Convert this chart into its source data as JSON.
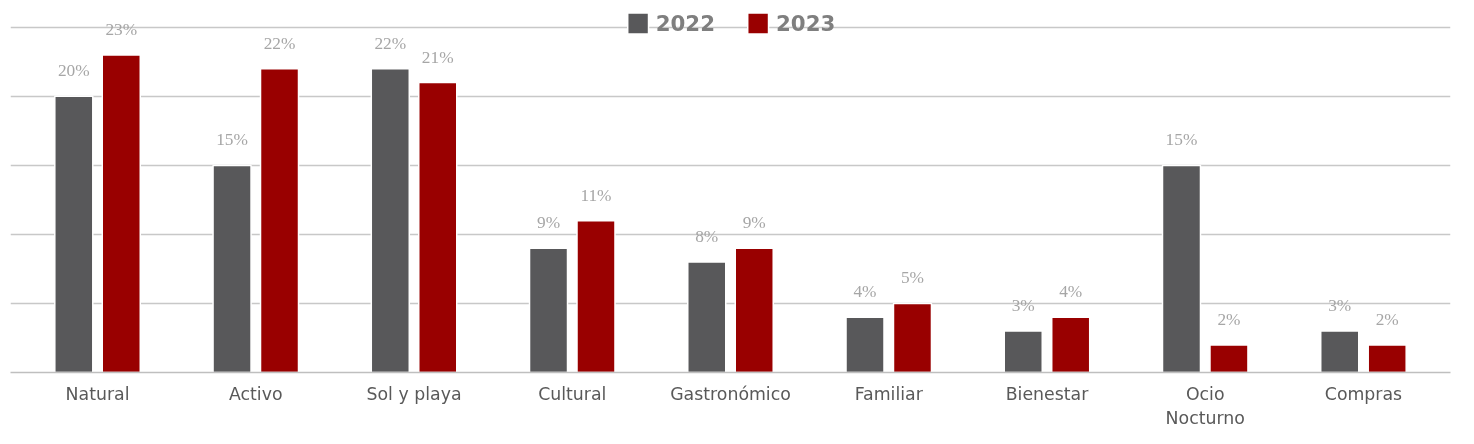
{
  "chart_data": {
    "type": "bar",
    "categories": [
      "Natural",
      "Activo",
      "Sol y playa",
      "Cultural",
      "Gastronómico",
      "Familiar",
      "Bienestar",
      "Ocio Nocturno",
      "Compras"
    ],
    "series": [
      {
        "name": "2022",
        "color": "#58585a",
        "values": [
          20,
          15,
          22,
          9,
          8,
          4,
          3,
          15,
          3
        ],
        "value_labels": [
          "20%",
          "15%",
          "22%",
          "9%",
          "8%",
          "4%",
          "3%",
          "15%",
          "3%"
        ]
      },
      {
        "name": "2023",
        "color": "#990000",
        "values": [
          23,
          22,
          21,
          11,
          9,
          5,
          4,
          2,
          2
        ],
        "value_labels": [
          "23%",
          "22%",
          "21%",
          "11%",
          "9%",
          "5%",
          "4%",
          "2%",
          "2%"
        ]
      }
    ],
    "tick_labels": "x",
    "grid": "y",
    "legend": "top"
  }
}
